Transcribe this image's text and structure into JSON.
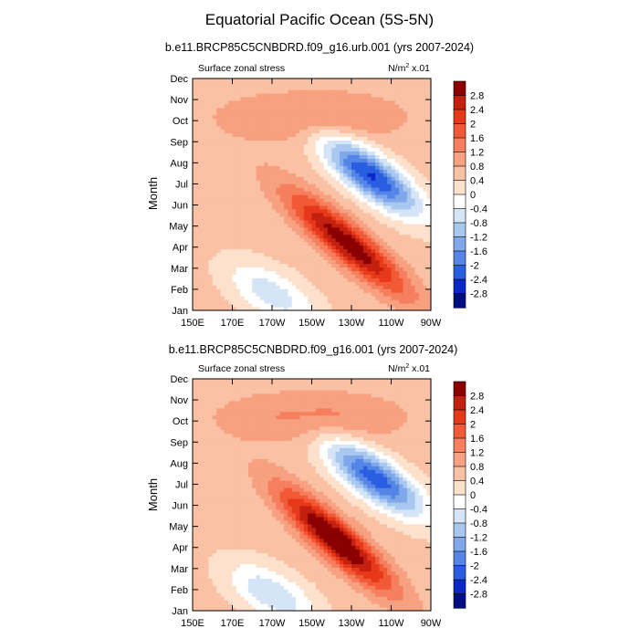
{
  "figure": {
    "title": "Equatorial Pacific Ocean (5S-5N)"
  },
  "colorbar": {
    "levels": [
      "2.8",
      "2.4",
      "2",
      "1.6",
      "1.2",
      "0.8",
      "0.4",
      "0",
      "-0.4",
      "-0.8",
      "-1.2",
      "-1.6",
      "-2",
      "-2.4",
      "-2.8"
    ],
    "colors": [
      "#8b0000",
      "#c4200f",
      "#e8381a",
      "#f25a37",
      "#f57f5e",
      "#f7a181",
      "#fac1a4",
      "#fde1cd",
      "#ffffff",
      "#d6e4f7",
      "#a9c8f0",
      "#7fa8ea",
      "#5585e6",
      "#2a5ee0",
      "#0a28c9",
      "#000e80"
    ]
  },
  "chart_data": [
    {
      "type": "heatmap",
      "title": "b.e11.BRCP85C5CNBDRD.f09_g16.urb.001 (yrs 2007-2024)",
      "left_label": "Surface zonal stress",
      "units_prefix": "N/m",
      "units_exp": "2",
      "units_suffix": " x.01",
      "ylabel": "Month",
      "y_ticks": [
        "Jan",
        "Feb",
        "Mar",
        "Apr",
        "May",
        "Jun",
        "Jul",
        "Aug",
        "Sep",
        "Oct",
        "Nov",
        "Dec"
      ],
      "x_ticks": [
        "150E",
        "170E",
        "170W",
        "150W",
        "130W",
        "110W",
        "90W"
      ],
      "x_range_deg_east": [
        150,
        270
      ],
      "features": [
        {
          "kind": "positive",
          "lon": 228,
          "month": 4.2,
          "amp": 2.6,
          "slope": -0.072,
          "width_month": 1.1,
          "width_lon": 30
        },
        {
          "kind": "negative",
          "lon": 240,
          "month": 7.4,
          "amp": -3.0,
          "slope": -0.058,
          "width_month": 1.15,
          "width_lon": 24
        },
        {
          "kind": "positive",
          "lon": 210,
          "month": 10.2,
          "amp": 0.8,
          "slope": 0.0,
          "width_month": 1.2,
          "width_lon": 45
        },
        {
          "kind": "negative",
          "lon": 190,
          "month": 1.8,
          "amp": -1.2,
          "slope": -0.04,
          "width_month": 1.2,
          "width_lon": 22
        }
      ]
    },
    {
      "type": "heatmap",
      "title": "b.e11.BRCP85C5CNBDRD.f09_g16.001 (yrs 2007-2024)",
      "left_label": "Surface zonal stress",
      "units_prefix": "N/m",
      "units_exp": "2",
      "units_suffix": " x.01",
      "ylabel": "Month",
      "y_ticks": [
        "Jan",
        "Feb",
        "Mar",
        "Apr",
        "May",
        "Jun",
        "Jul",
        "Aug",
        "Sep",
        "Oct",
        "Nov",
        "Dec"
      ],
      "x_ticks": [
        "150E",
        "170E",
        "170W",
        "150W",
        "130W",
        "110W",
        "90W"
      ],
      "x_range_deg_east": [
        150,
        270
      ],
      "features": [
        {
          "kind": "positive",
          "lon": 222,
          "month": 4.4,
          "amp": 2.9,
          "slope": -0.075,
          "width_month": 1.1,
          "width_lon": 28
        },
        {
          "kind": "negative",
          "lon": 242,
          "month": 7.3,
          "amp": -2.8,
          "slope": -0.055,
          "width_month": 1.15,
          "width_lon": 24
        },
        {
          "kind": "positive",
          "lon": 210,
          "month": 10.2,
          "amp": 0.8,
          "slope": 0.0,
          "width_month": 1.2,
          "width_lon": 45
        },
        {
          "kind": "negative",
          "lon": 190,
          "month": 1.8,
          "amp": -1.3,
          "slope": -0.04,
          "width_month": 1.2,
          "width_lon": 22
        }
      ]
    }
  ]
}
